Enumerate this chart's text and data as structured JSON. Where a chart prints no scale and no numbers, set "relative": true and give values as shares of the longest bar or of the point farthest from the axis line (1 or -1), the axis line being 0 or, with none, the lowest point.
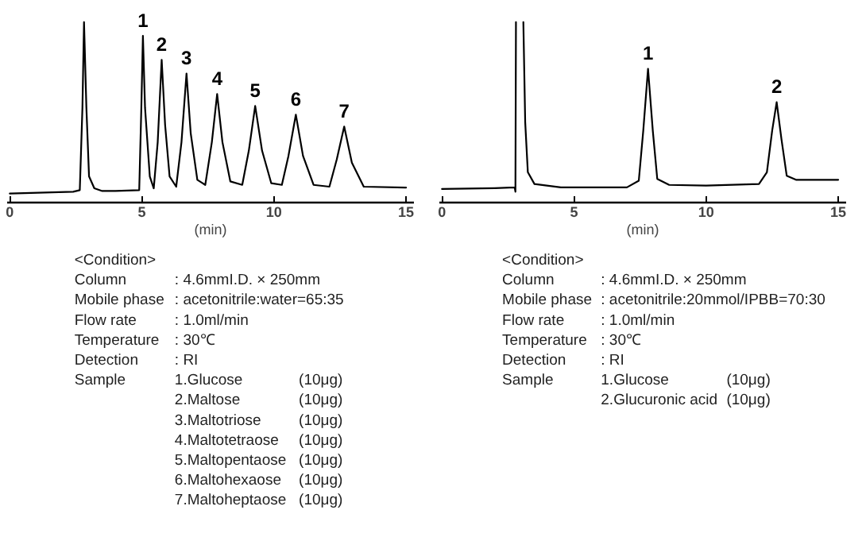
{
  "chart_data": [
    {
      "type": "line",
      "relative": true,
      "xlabel": "(min)",
      "xlim": [
        -0.1,
        15.3
      ],
      "xticks": [
        0,
        5,
        10,
        15
      ],
      "grid": false,
      "tick_labels": "x",
      "series": [
        {
          "color": "#000000",
          "x": [
            0,
            2.4,
            2.65,
            2.75,
            2.81,
            2.9,
            3.0,
            3.2,
            3.5,
            4.0,
            4.9,
            4.98,
            5.04,
            5.12,
            5.3,
            5.45,
            5.6,
            5.75,
            5.88,
            6.05,
            6.3,
            6.5,
            6.69,
            6.85,
            7.1,
            7.4,
            7.65,
            7.85,
            8.05,
            8.35,
            8.8,
            9.05,
            9.29,
            9.55,
            9.9,
            10.3,
            10.55,
            10.83,
            11.1,
            11.5,
            12.1,
            12.38,
            12.66,
            12.95,
            13.4,
            15
          ],
          "values": [
            0.05,
            0.06,
            0.069,
            0.525,
            1.0,
            0.525,
            0.145,
            0.079,
            0.064,
            0.064,
            0.069,
            0.525,
            0.924,
            0.525,
            0.145,
            0.079,
            0.335,
            0.791,
            0.43,
            0.145,
            0.088,
            0.335,
            0.715,
            0.383,
            0.126,
            0.098,
            0.335,
            0.601,
            0.335,
            0.117,
            0.098,
            0.288,
            0.535,
            0.288,
            0.107,
            0.098,
            0.259,
            0.487,
            0.259,
            0.098,
            0.088,
            0.24,
            0.421,
            0.221,
            0.088,
            0.083
          ]
        }
      ],
      "annotations": [
        {
          "text": "1",
          "x": 5.04,
          "y": 0.924
        },
        {
          "text": "2",
          "x": 5.75,
          "y": 0.791
        },
        {
          "text": "3",
          "x": 6.69,
          "y": 0.715
        },
        {
          "text": "4",
          "x": 7.85,
          "y": 0.601
        },
        {
          "text": "5",
          "x": 9.29,
          "y": 0.535
        },
        {
          "text": "6",
          "x": 10.83,
          "y": 0.487
        },
        {
          "text": "7",
          "x": 12.66,
          "y": 0.421
        },
        "<Condition>",
        "Column\t: 4.6mmI.D. × 250mm",
        "Mobile phase\t: acetonitrile:water=65:35",
        "Flow rate\t: 1.0ml/min",
        "Temperature\t: 30℃",
        "Detection\t: RI",
        "Sample\t1.Glucose\t(10μg)",
        "\t2.Maltose\t(10μg)",
        "\t3.Maltotriose\t(10μg)",
        "\t4.Maltotetraose\t(10μg)",
        "\t5.Maltopentaose\t(10μg)",
        "\t6.Maltohexaose\t(10μg)",
        "\t7.Maltoheptaose\t(10μg)"
      ]
    },
    {
      "type": "line",
      "relative": true,
      "xlabel": "(min)",
      "xlim": [
        -0.1,
        15.3
      ],
      "xticks": [
        0,
        5,
        10,
        15
      ],
      "grid": false,
      "tick_labels": "x",
      "series": [
        {
          "color": "#000000",
          "x": [
            0,
            2.0,
            2.75,
            2.78,
            2.8,
            2.81,
            3.08,
            3.15,
            3.25,
            3.5,
            4.5,
            7.0,
            7.45,
            7.62,
            7.8,
            7.98,
            8.15,
            8.6,
            10,
            12.0,
            12.3,
            12.5,
            12.67,
            12.85,
            13.05,
            13.4,
            15
          ],
          "values": [
            0.075,
            0.08,
            0.084,
            0.06,
            1.0,
            null,
            1.0,
            0.445,
            0.168,
            0.103,
            0.084,
            0.084,
            0.121,
            0.399,
            0.741,
            0.399,
            0.131,
            0.098,
            0.094,
            0.103,
            0.168,
            0.399,
            0.556,
            0.353,
            0.149,
            0.126,
            0.126
          ]
        }
      ],
      "annotations": [
        {
          "text": "1",
          "x": 7.8,
          "y": 0.741
        },
        {
          "text": "2",
          "x": 12.67,
          "y": 0.556
        },
        "<Condition>",
        "Column\t: 4.6mmI.D. × 250mm",
        "Mobile phase\t: acetonitrile:20mmol/IPBB=70:30",
        "Flow rate\t: 1.0ml/min",
        "Temperature\t: 30℃",
        "Detection\t: RI",
        "Sample\t1.Glucose\t(10μg)",
        "\t2.Glucuronic acid\t(10μg)"
      ]
    }
  ]
}
